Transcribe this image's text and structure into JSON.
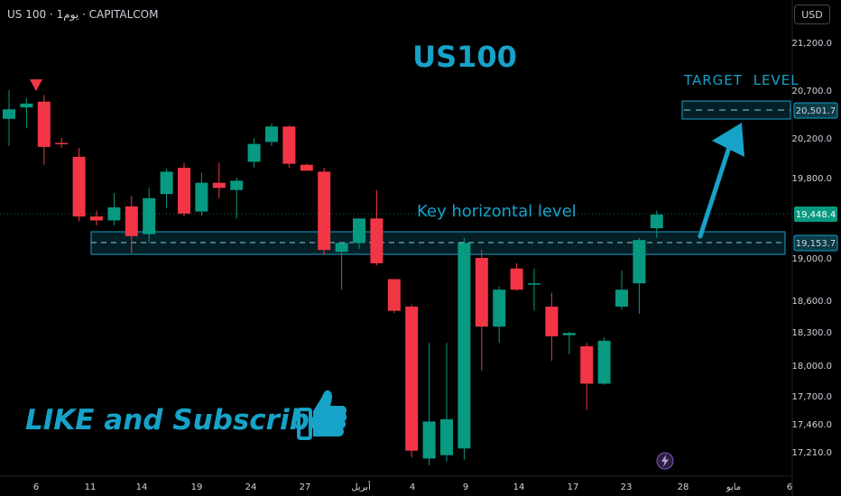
{
  "symbol_info": "US 100 · 1يوم · CAPITALCOM",
  "currency_button": "USD",
  "chart_data": {
    "type": "candlestick",
    "title": "US100",
    "y_axis_ticks": [
      "21,200.0",
      "20,700.0",
      "20,200.0",
      "19,800.0",
      "19,000.0",
      "18,600.0",
      "18,300.0",
      "18,000.0",
      "17,700.0",
      "17,460.0",
      "17,210.0"
    ],
    "x_axis_ticks": [
      "6",
      "11",
      "14",
      "19",
      "24",
      "27",
      "أبريل",
      "4",
      "9",
      "14",
      "17",
      "23",
      "28",
      "مايو",
      "6"
    ],
    "price_labels": {
      "target": "20,501.7",
      "current": "19,448.4",
      "key_level": "19,153.7"
    },
    "levels": {
      "target": 20501.7,
      "current": 19448.4,
      "key": 19153.7,
      "key_zone": [
        19020,
        19290
      ],
      "target_zone": [
        20450,
        20560
      ]
    },
    "candles": [
      {
        "o": 20400,
        "h": 20700,
        "l": 20120,
        "c": 20500
      },
      {
        "o": 20520,
        "h": 20620,
        "l": 20300,
        "c": 20560
      },
      {
        "o": 20580,
        "h": 20650,
        "l": 19930,
        "c": 20110
      },
      {
        "o": 20150,
        "h": 20200,
        "l": 20100,
        "c": 20140
      },
      {
        "o": 20010,
        "h": 20100,
        "l": 19370,
        "c": 19420
      },
      {
        "o": 19420,
        "h": 19480,
        "l": 19330,
        "c": 19380
      },
      {
        "o": 19380,
        "h": 19650,
        "l": 19330,
        "c": 19510
      },
      {
        "o": 19520,
        "h": 19620,
        "l": 19050,
        "c": 19220
      },
      {
        "o": 19240,
        "h": 19700,
        "l": 19150,
        "c": 19600
      },
      {
        "o": 19640,
        "h": 19890,
        "l": 19500,
        "c": 19860
      },
      {
        "o": 19900,
        "h": 19950,
        "l": 19420,
        "c": 19450
      },
      {
        "o": 19470,
        "h": 19850,
        "l": 19430,
        "c": 19750
      },
      {
        "o": 19750,
        "h": 19950,
        "l": 19600,
        "c": 19700
      },
      {
        "o": 19680,
        "h": 19800,
        "l": 19400,
        "c": 19770
      },
      {
        "o": 19960,
        "h": 20200,
        "l": 19900,
        "c": 20140
      },
      {
        "o": 20160,
        "h": 20350,
        "l": 20120,
        "c": 20320
      },
      {
        "o": 20320,
        "h": 20330,
        "l": 19900,
        "c": 19940
      },
      {
        "o": 19930,
        "h": 19940,
        "l": 19870,
        "c": 19870
      },
      {
        "o": 19860,
        "h": 19900,
        "l": 19030,
        "c": 19080
      },
      {
        "o": 19060,
        "h": 19160,
        "l": 18700,
        "c": 19150
      },
      {
        "o": 19150,
        "h": 19390,
        "l": 19090,
        "c": 19400
      },
      {
        "o": 19400,
        "h": 19680,
        "l": 18930,
        "c": 18950
      },
      {
        "o": 18800,
        "h": 18800,
        "l": 18480,
        "c": 18500
      },
      {
        "o": 18540,
        "h": 18560,
        "l": 17160,
        "c": 17220
      },
      {
        "o": 17150,
        "h": 18200,
        "l": 17090,
        "c": 17480
      },
      {
        "o": 17180,
        "h": 18200,
        "l": 17120,
        "c": 17500
      },
      {
        "o": 17240,
        "h": 19200,
        "l": 17140,
        "c": 19150
      },
      {
        "o": 19000,
        "h": 19080,
        "l": 17950,
        "c": 18350
      },
      {
        "o": 18350,
        "h": 18730,
        "l": 18200,
        "c": 18700
      },
      {
        "o": 18900,
        "h": 18950,
        "l": 18690,
        "c": 18700
      },
      {
        "o": 18760,
        "h": 18900,
        "l": 18500,
        "c": 18760
      },
      {
        "o": 18540,
        "h": 18670,
        "l": 18040,
        "c": 18260
      },
      {
        "o": 18270,
        "h": 18300,
        "l": 18100,
        "c": 18290
      },
      {
        "o": 18170,
        "h": 18200,
        "l": 17580,
        "c": 17820
      },
      {
        "o": 17820,
        "h": 18250,
        "l": 17810,
        "c": 18220
      },
      {
        "o": 18540,
        "h": 18880,
        "l": 18510,
        "c": 18700
      },
      {
        "o": 18760,
        "h": 19200,
        "l": 18470,
        "c": 19180
      },
      {
        "o": 19300,
        "h": 19480,
        "l": 19200,
        "c": 19440
      }
    ]
  },
  "annotations": {
    "target_label": "TARGET  LEVEL",
    "key_label": "Key horizontal level",
    "like_label": "LIKE and Subscribe"
  },
  "colors": {
    "background": "#000000",
    "up": "#089981",
    "down": "#f23645",
    "accent": "#17a2c8",
    "text": "#d1d4dc"
  },
  "icons": {
    "signal": "triangle-down-icon",
    "thumb": "thumbs-up-icon",
    "flash": "lightning-icon"
  }
}
